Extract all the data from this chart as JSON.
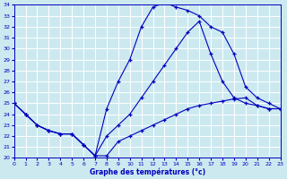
{
  "xlabel": "Graphe des températures (°c)",
  "xlim": [
    0,
    23
  ],
  "ylim": [
    20,
    34
  ],
  "yticks": [
    20,
    21,
    22,
    23,
    24,
    25,
    26,
    27,
    28,
    29,
    30,
    31,
    32,
    33,
    34
  ],
  "xticks": [
    0,
    1,
    2,
    3,
    4,
    5,
    6,
    7,
    8,
    9,
    10,
    11,
    12,
    13,
    14,
    15,
    16,
    17,
    18,
    19,
    20,
    21,
    22,
    23
  ],
  "background_color": "#cce9f0",
  "grid_color": "#ffffff",
  "line_color": "#0000bb",
  "line1_x": [
    0,
    1,
    2,
    3,
    4,
    5,
    6,
    7,
    8,
    9,
    10,
    11,
    12,
    13,
    14,
    15,
    16,
    17,
    18,
    19,
    20,
    21,
    22,
    23
  ],
  "line1_y": [
    25.0,
    24.0,
    23.0,
    22.5,
    22.2,
    22.2,
    21.2,
    20.2,
    20.2,
    21.5,
    22.0,
    22.5,
    23.0,
    23.5,
    24.0,
    24.5,
    24.8,
    25.0,
    25.2,
    25.4,
    25.5,
    24.8,
    24.5,
    24.5
  ],
  "line2_x": [
    0,
    1,
    2,
    3,
    4,
    5,
    6,
    7,
    8,
    9,
    10,
    11,
    12,
    13,
    14,
    15,
    16,
    17,
    18,
    19,
    20,
    21,
    22,
    23
  ],
  "line2_y": [
    25.0,
    24.0,
    23.0,
    22.5,
    22.2,
    22.2,
    21.2,
    20.2,
    24.5,
    27.0,
    29.0,
    32.0,
    33.8,
    34.2,
    33.8,
    33.5,
    33.0,
    32.0,
    31.5,
    29.5,
    26.5,
    25.5,
    25.0,
    24.5
  ],
  "line3_x": [
    0,
    1,
    2,
    3,
    4,
    5,
    6,
    7,
    8,
    9,
    10,
    11,
    12,
    13,
    14,
    15,
    16,
    17,
    18,
    19,
    20,
    21,
    22,
    23
  ],
  "line3_y": [
    25.0,
    24.0,
    23.0,
    22.5,
    22.2,
    22.2,
    21.2,
    20.2,
    22.0,
    23.0,
    24.0,
    25.5,
    27.0,
    28.5,
    30.0,
    31.5,
    32.5,
    29.5,
    27.0,
    25.5,
    25.0,
    24.8,
    24.5,
    24.5
  ]
}
